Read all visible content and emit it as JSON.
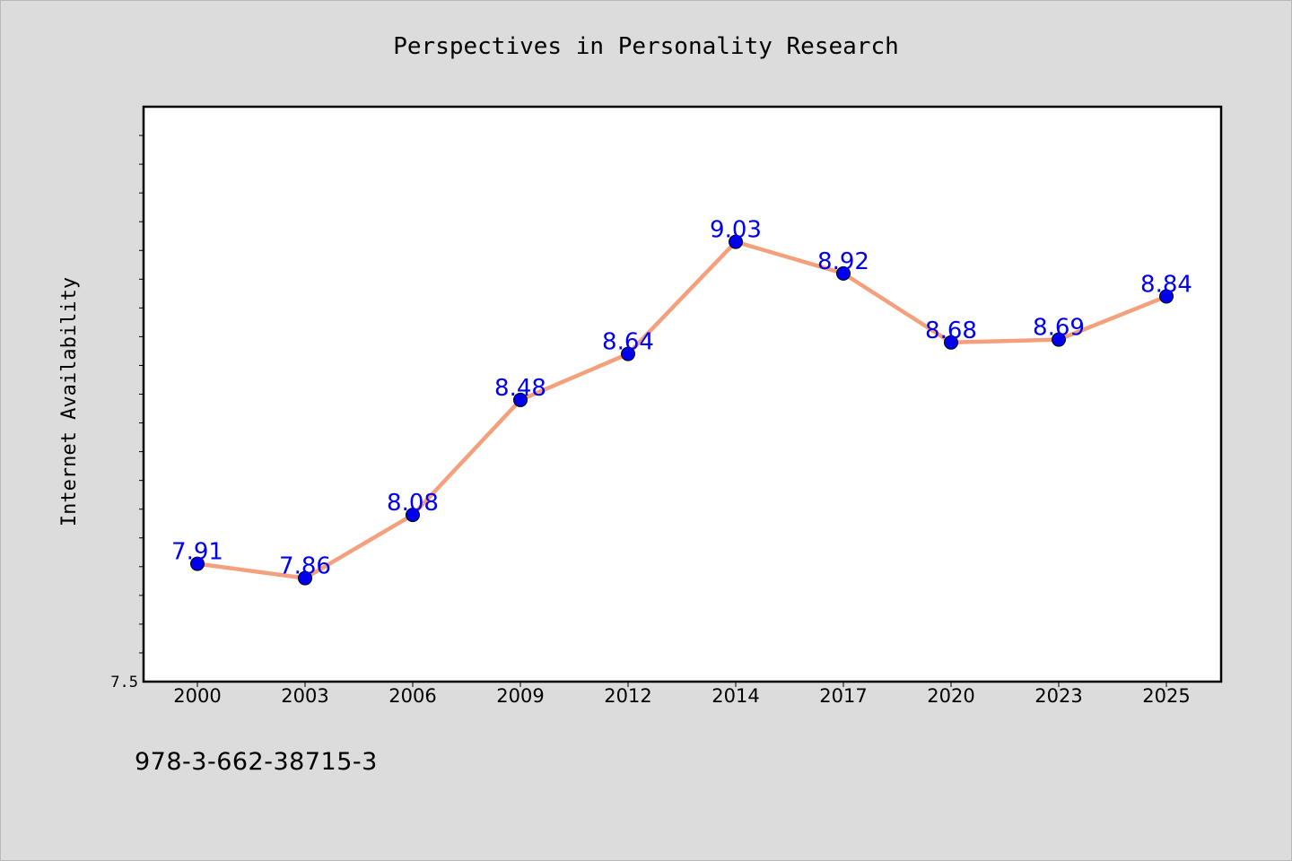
{
  "footer": {
    "code": "978-3-662-38715-3"
  },
  "colors": {
    "line": "#f4a07c",
    "marker": "#0000ee",
    "label": "#0000ee",
    "background": "#dcdcdc",
    "plot": "#ffffff"
  },
  "chart_data": {
    "type": "line",
    "title": "Perspectives in Personality Research",
    "xlabel": "",
    "ylabel": "Internet Availability",
    "categories": [
      "2000",
      "2003",
      "2006",
      "2009",
      "2012",
      "2014",
      "2017",
      "2020",
      "2023",
      "2025"
    ],
    "series": [
      {
        "values": [
          7.91,
          7.86,
          8.08,
          8.48,
          8.64,
          9.03,
          8.92,
          8.68,
          8.69,
          8.84
        ]
      }
    ],
    "data_labels": [
      "7.91",
      "7.86",
      "8.08",
      "8.48",
      "8.64",
      "9.03",
      "8.92",
      "8.68",
      "8.69",
      "8.84"
    ],
    "ytick_labels": [
      "7.5"
    ],
    "ylim": [
      7.5,
      9.5
    ],
    "grid": false,
    "legend": "none"
  }
}
